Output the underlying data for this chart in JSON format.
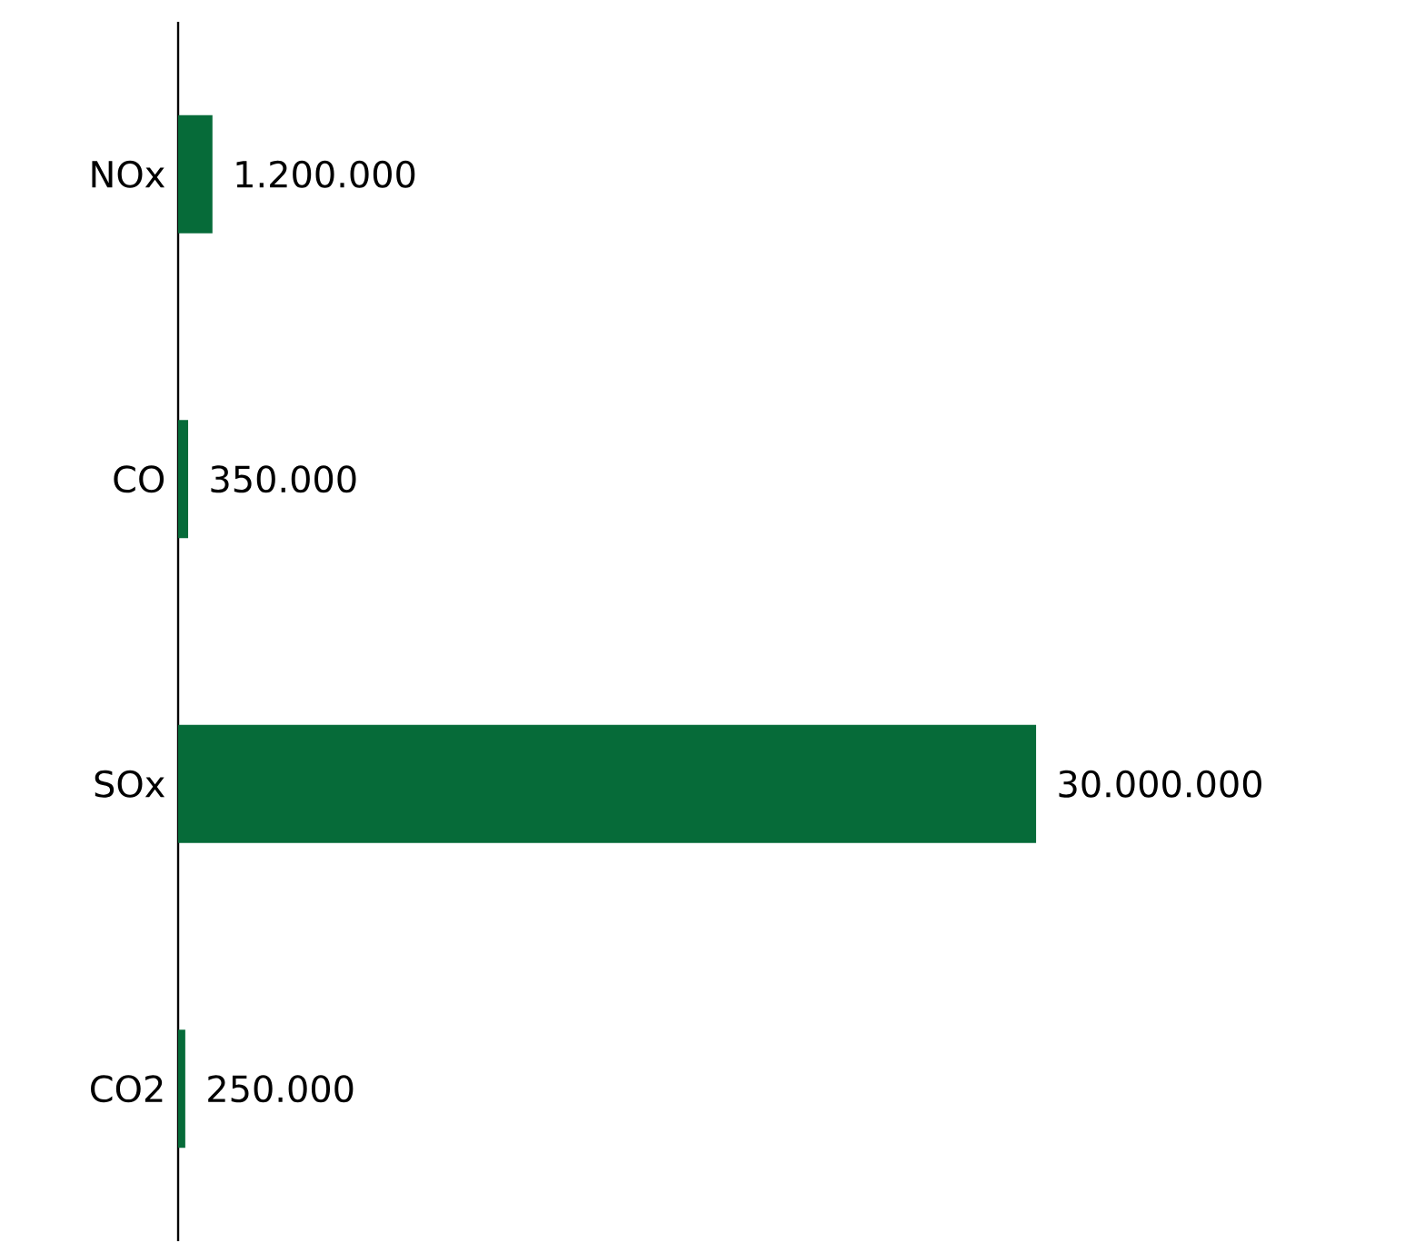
{
  "chart_data": {
    "type": "bar",
    "orientation": "horizontal",
    "categories": [
      "NOx",
      "CO",
      "SOx",
      "CO2"
    ],
    "values": [
      1200000,
      350000,
      30000000,
      250000
    ],
    "value_labels": [
      "1.200.000",
      "350.000",
      "30.000.000",
      "250.000"
    ],
    "color": "#066b39"
  }
}
